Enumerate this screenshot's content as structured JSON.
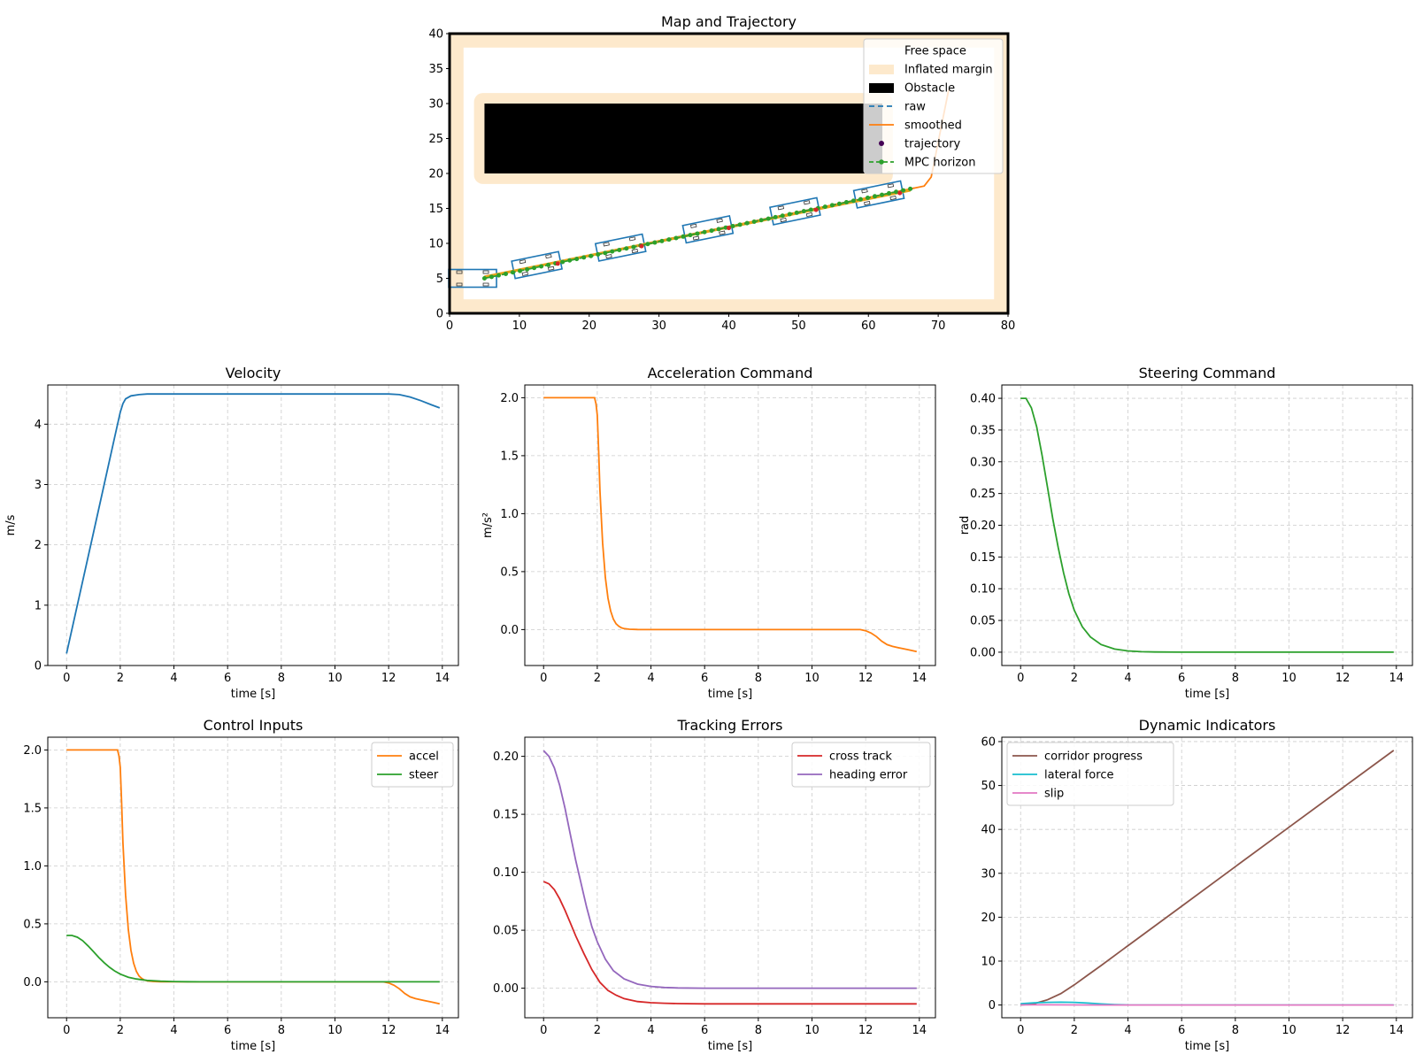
{
  "chart_data": [
    {
      "id": "map",
      "type": "line",
      "title": "Map and Trajectory",
      "xlim": [
        0,
        80
      ],
      "ylim": [
        0,
        40
      ],
      "xticks": [
        0,
        10,
        20,
        30,
        40,
        50,
        60,
        70,
        80
      ],
      "yticks": [
        0,
        5,
        10,
        15,
        20,
        25,
        30,
        35,
        40
      ],
      "grid": false,
      "legend_position": "top-right",
      "legend": [
        "Free space",
        "Inflated margin",
        "Obstacle",
        "raw",
        "smoothed",
        "trajectory",
        "MPC horizon"
      ],
      "regions": {
        "inflated_margin_color": "#fde9cc",
        "obstacle": {
          "x": [
            5,
            62
          ],
          "y": [
            20,
            30
          ]
        },
        "obstacle_margin": {
          "x": [
            3.5,
            63.5
          ],
          "y": [
            18.5,
            31.5
          ]
        },
        "free_space": {
          "x": [
            2,
            78
          ],
          "y": [
            2,
            38
          ]
        }
      },
      "series": [
        {
          "name": "raw",
          "color": "#1f77b4",
          "style": "dashed",
          "x": [
            5,
            67
          ],
          "y": [
            5.2,
            18
          ]
        },
        {
          "name": "smoothed",
          "color": "#ff7f0e",
          "style": "solid",
          "x": [
            5,
            68,
            69,
            71.5
          ],
          "y": [
            5.2,
            18.2,
            19.5,
            32
          ]
        },
        {
          "name": "trajectory",
          "color": "#ff7f0e",
          "style": "solid",
          "x": [
            5,
            66
          ],
          "y": [
            5.2,
            17.6
          ]
        },
        {
          "name": "MPC horizon",
          "color": "#2ca02c",
          "style": "dashed",
          "x": [
            5,
            66
          ],
          "y": [
            5.0,
            17.8
          ]
        }
      ],
      "vehicles": [
        {
          "x": 3.3,
          "y": 5.0,
          "angle": 0
        },
        {
          "x": 12.5,
          "y": 6.9,
          "angle": 11.6
        },
        {
          "x": 24.5,
          "y": 9.4,
          "angle": 11.6
        },
        {
          "x": 37.0,
          "y": 12.0,
          "angle": 11.6
        },
        {
          "x": 49.5,
          "y": 14.6,
          "angle": 11.6
        },
        {
          "x": 61.5,
          "y": 17.0,
          "angle": 11.6
        }
      ]
    },
    {
      "id": "velocity",
      "type": "line",
      "title": "Velocity",
      "xlabel": "time [s]",
      "ylabel": "m/s",
      "xlim": [
        -0.7,
        14.6
      ],
      "ylim": [
        0,
        4.65
      ],
      "xticks": [
        0,
        2,
        4,
        6,
        8,
        10,
        12,
        14
      ],
      "yticks": [
        0,
        1,
        2,
        3,
        4
      ],
      "grid": true,
      "series": [
        {
          "color": "#1f77b4",
          "x": [
            0,
            1.0,
            1.8,
            2.0,
            2.1,
            2.2,
            2.4,
            2.7,
            3.0,
            4,
            6,
            8,
            10,
            11.5,
            12.0,
            12.4,
            12.8,
            13.2,
            13.6,
            13.9
          ],
          "y": [
            0.2,
            2.2,
            3.8,
            4.2,
            4.34,
            4.42,
            4.47,
            4.49,
            4.5,
            4.5,
            4.5,
            4.5,
            4.5,
            4.5,
            4.5,
            4.49,
            4.45,
            4.39,
            4.32,
            4.27
          ]
        }
      ]
    },
    {
      "id": "acceleration",
      "type": "line",
      "title": "Acceleration Command",
      "xlabel": "time [s]",
      "ylabel": "m/s²",
      "xlim": [
        -0.7,
        14.6
      ],
      "ylim": [
        -0.31,
        2.11
      ],
      "xticks": [
        0,
        2,
        4,
        6,
        8,
        10,
        12,
        14
      ],
      "yticks": [
        0.0,
        0.5,
        1.0,
        1.5,
        2.0
      ],
      "ytick_labels": [
        "0.0",
        "0.5",
        "1.0",
        "1.5",
        "2.0"
      ],
      "grid": true,
      "series": [
        {
          "color": "#ff7f0e",
          "x": [
            0,
            1.9,
            1.95,
            2.0,
            2.05,
            2.1,
            2.2,
            2.3,
            2.4,
            2.5,
            2.6,
            2.7,
            2.8,
            2.9,
            3.0,
            3.2,
            3.5,
            4,
            6,
            8,
            10,
            11.8,
            12.0,
            12.2,
            12.4,
            12.6,
            12.8,
            13.0,
            13.3,
            13.6,
            13.9
          ],
          "y": [
            2.0,
            2.0,
            1.95,
            1.85,
            1.55,
            1.2,
            0.75,
            0.45,
            0.27,
            0.16,
            0.09,
            0.05,
            0.03,
            0.015,
            0.008,
            0.003,
            0.001,
            0.0,
            0.0,
            0.0,
            0.0,
            0.0,
            -0.01,
            -0.03,
            -0.06,
            -0.1,
            -0.13,
            -0.145,
            -0.16,
            -0.175,
            -0.19
          ]
        }
      ]
    },
    {
      "id": "steering",
      "type": "line",
      "title": "Steering Command",
      "xlabel": "time [s]",
      "ylabel": "rad",
      "xlim": [
        -0.7,
        14.6
      ],
      "ylim": [
        -0.021,
        0.421
      ],
      "xticks": [
        0,
        2,
        4,
        6,
        8,
        10,
        12,
        14
      ],
      "yticks": [
        0.0,
        0.05,
        0.1,
        0.15,
        0.2,
        0.25,
        0.3,
        0.35,
        0.4
      ],
      "ytick_labels": [
        "0.00",
        "0.05",
        "0.10",
        "0.15",
        "0.20",
        "0.25",
        "0.30",
        "0.35",
        "0.40"
      ],
      "grid": true,
      "series": [
        {
          "color": "#2ca02c",
          "x": [
            0,
            0.2,
            0.4,
            0.6,
            0.8,
            1.0,
            1.2,
            1.4,
            1.6,
            1.8,
            2.0,
            2.3,
            2.6,
            3.0,
            3.5,
            4.0,
            4.5,
            5,
            6,
            8,
            10,
            12,
            13.9
          ],
          "y": [
            0.4,
            0.4,
            0.385,
            0.355,
            0.31,
            0.26,
            0.21,
            0.165,
            0.125,
            0.092,
            0.066,
            0.04,
            0.024,
            0.012,
            0.005,
            0.002,
            0.0008,
            0.0003,
            0.0,
            0.0,
            0.0,
            0.0,
            0.0
          ]
        }
      ]
    },
    {
      "id": "control",
      "type": "line",
      "title": "Control Inputs",
      "xlabel": "time [s]",
      "xlim": [
        -0.7,
        14.6
      ],
      "ylim": [
        -0.31,
        2.11
      ],
      "xticks": [
        0,
        2,
        4,
        6,
        8,
        10,
        12,
        14
      ],
      "yticks": [
        0.0,
        0.5,
        1.0,
        1.5,
        2.0
      ],
      "ytick_labels": [
        "0.0",
        "0.5",
        "1.0",
        "1.5",
        "2.0"
      ],
      "grid": true,
      "legend_position": "top-right",
      "series": [
        {
          "name": "accel",
          "color": "#ff7f0e",
          "x": [
            0,
            1.9,
            1.95,
            2.0,
            2.05,
            2.1,
            2.2,
            2.3,
            2.4,
            2.5,
            2.6,
            2.7,
            2.8,
            2.9,
            3.0,
            3.2,
            3.5,
            4,
            6,
            8,
            10,
            11.8,
            12.0,
            12.2,
            12.4,
            12.6,
            12.8,
            13.0,
            13.3,
            13.6,
            13.9
          ],
          "y": [
            2.0,
            2.0,
            1.95,
            1.85,
            1.55,
            1.2,
            0.75,
            0.45,
            0.27,
            0.16,
            0.09,
            0.05,
            0.03,
            0.015,
            0.008,
            0.003,
            0.001,
            0.0,
            0.0,
            0.0,
            0.0,
            0.0,
            -0.01,
            -0.03,
            -0.06,
            -0.1,
            -0.13,
            -0.145,
            -0.16,
            -0.175,
            -0.19
          ]
        },
        {
          "name": "steer",
          "color": "#2ca02c",
          "x": [
            0,
            0.2,
            0.4,
            0.6,
            0.8,
            1.0,
            1.2,
            1.4,
            1.6,
            1.8,
            2.0,
            2.3,
            2.6,
            3.0,
            3.5,
            4.0,
            4.5,
            5,
            6,
            8,
            10,
            12,
            13.9
          ],
          "y": [
            0.4,
            0.4,
            0.385,
            0.355,
            0.31,
            0.26,
            0.21,
            0.165,
            0.125,
            0.092,
            0.066,
            0.04,
            0.024,
            0.012,
            0.005,
            0.002,
            0.0008,
            0.0003,
            0.0,
            0.0,
            0.0,
            0.0,
            0.0
          ]
        }
      ]
    },
    {
      "id": "tracking",
      "type": "line",
      "title": "Tracking Errors",
      "xlabel": "time [s]",
      "xlim": [
        -0.7,
        14.6
      ],
      "ylim": [
        -0.0255,
        0.2165
      ],
      "xticks": [
        0,
        2,
        4,
        6,
        8,
        10,
        12,
        14
      ],
      "yticks": [
        0.0,
        0.05,
        0.1,
        0.15,
        0.2
      ],
      "ytick_labels": [
        "0.00",
        "0.05",
        "0.10",
        "0.15",
        "0.20"
      ],
      "grid": true,
      "legend_position": "top-right",
      "series": [
        {
          "name": "cross track",
          "color": "#d62728",
          "x": [
            0,
            0.2,
            0.4,
            0.6,
            0.8,
            1.0,
            1.2,
            1.5,
            1.8,
            2.1,
            2.4,
            2.7,
            3.0,
            3.5,
            4.0,
            4.5,
            5,
            6,
            8,
            10,
            12,
            13.9
          ],
          "y": [
            0.092,
            0.09,
            0.085,
            0.077,
            0.067,
            0.056,
            0.045,
            0.03,
            0.016,
            0.005,
            -0.002,
            -0.006,
            -0.009,
            -0.0115,
            -0.0125,
            -0.013,
            -0.0133,
            -0.0135,
            -0.0135,
            -0.0135,
            -0.0135,
            -0.0135
          ]
        },
        {
          "name": "heading error",
          "color": "#9467bd",
          "x": [
            0,
            0.2,
            0.4,
            0.6,
            0.8,
            1.0,
            1.2,
            1.4,
            1.6,
            1.8,
            2.0,
            2.3,
            2.6,
            3.0,
            3.5,
            4.0,
            4.5,
            5,
            6,
            8,
            10,
            12,
            13.9
          ],
          "y": [
            0.205,
            0.2,
            0.19,
            0.175,
            0.155,
            0.132,
            0.11,
            0.09,
            0.07,
            0.053,
            0.04,
            0.025,
            0.015,
            0.008,
            0.0035,
            0.0015,
            0.0006,
            0.0002,
            0.0,
            0.0,
            0.0,
            0.0,
            0.0
          ]
        }
      ]
    },
    {
      "id": "dynamic",
      "type": "line",
      "title": "Dynamic Indicators",
      "xlabel": "time [s]",
      "xlim": [
        -0.7,
        14.6
      ],
      "ylim": [
        -2.9,
        61
      ],
      "xticks": [
        0,
        2,
        4,
        6,
        8,
        10,
        12,
        14
      ],
      "yticks": [
        0,
        10,
        20,
        30,
        40,
        50,
        60
      ],
      "grid": true,
      "legend_position": "top-left",
      "series": [
        {
          "name": "corridor progress",
          "color": "#8c564b",
          "x": [
            0,
            0.5,
            1.0,
            1.5,
            2.0,
            2.5,
            3.0,
            4,
            6,
            8,
            10,
            12,
            13.9
          ],
          "y": [
            0,
            0.3,
            1.2,
            2.6,
            4.6,
            6.8,
            9.0,
            13.5,
            22.5,
            31.5,
            40.5,
            49.5,
            58.0
          ]
        },
        {
          "name": "lateral force",
          "color": "#17becf",
          "x": [
            0,
            0.5,
            1.0,
            1.5,
            2.0,
            2.5,
            3.0,
            3.5,
            4,
            6,
            8,
            10,
            12,
            13.9
          ],
          "y": [
            0.3,
            0.5,
            0.6,
            0.65,
            0.6,
            0.45,
            0.25,
            0.1,
            0.03,
            0.0,
            0.0,
            0.0,
            0.0,
            0.0
          ]
        },
        {
          "name": "slip",
          "color": "#e377c2",
          "x": [
            0,
            0.5,
            1.0,
            2.0,
            3.0,
            4,
            6,
            8,
            10,
            12,
            13.9
          ],
          "y": [
            0.02,
            0.04,
            0.04,
            0.03,
            0.01,
            0.0,
            0.0,
            0.0,
            0.0,
            0.0,
            0.0
          ]
        }
      ]
    }
  ]
}
